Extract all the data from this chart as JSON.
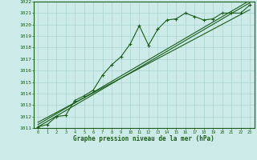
{
  "title": "Graphe pression niveau de la mer (hPa)",
  "bg_color": "#cceae7",
  "grid_color": "#aad4d0",
  "line_color": "#1a5c1a",
  "xlim": [
    -0.5,
    23.5
  ],
  "ylim": [
    1011,
    1022
  ],
  "xticks": [
    0,
    1,
    2,
    3,
    4,
    5,
    6,
    7,
    8,
    9,
    10,
    11,
    12,
    13,
    14,
    15,
    16,
    17,
    18,
    19,
    20,
    21,
    22,
    23
  ],
  "yticks": [
    1011,
    1012,
    1013,
    1014,
    1015,
    1016,
    1017,
    1018,
    1019,
    1020,
    1021,
    1022
  ],
  "main_x": [
    0,
    1,
    2,
    3,
    4,
    5,
    6,
    7,
    8,
    9,
    10,
    11,
    12,
    13,
    14,
    15,
    16,
    17,
    18,
    19,
    20,
    21,
    22,
    23
  ],
  "main_y": [
    1011.1,
    1011.3,
    1012.0,
    1012.1,
    1013.4,
    1013.8,
    1014.3,
    1015.6,
    1016.5,
    1017.2,
    1018.3,
    1019.9,
    1018.2,
    1019.6,
    1020.4,
    1020.5,
    1021.0,
    1020.7,
    1020.4,
    1020.5,
    1021.0,
    1021.0,
    1021.0,
    1021.7
  ],
  "line1_x": [
    0,
    23
  ],
  "line1_y": [
    1011.5,
    1021.3
  ],
  "line2_x": [
    0,
    23
  ],
  "line2_y": [
    1011.1,
    1021.9
  ],
  "line3_x": [
    0,
    23
  ],
  "line3_y": [
    1011.3,
    1022.1
  ]
}
